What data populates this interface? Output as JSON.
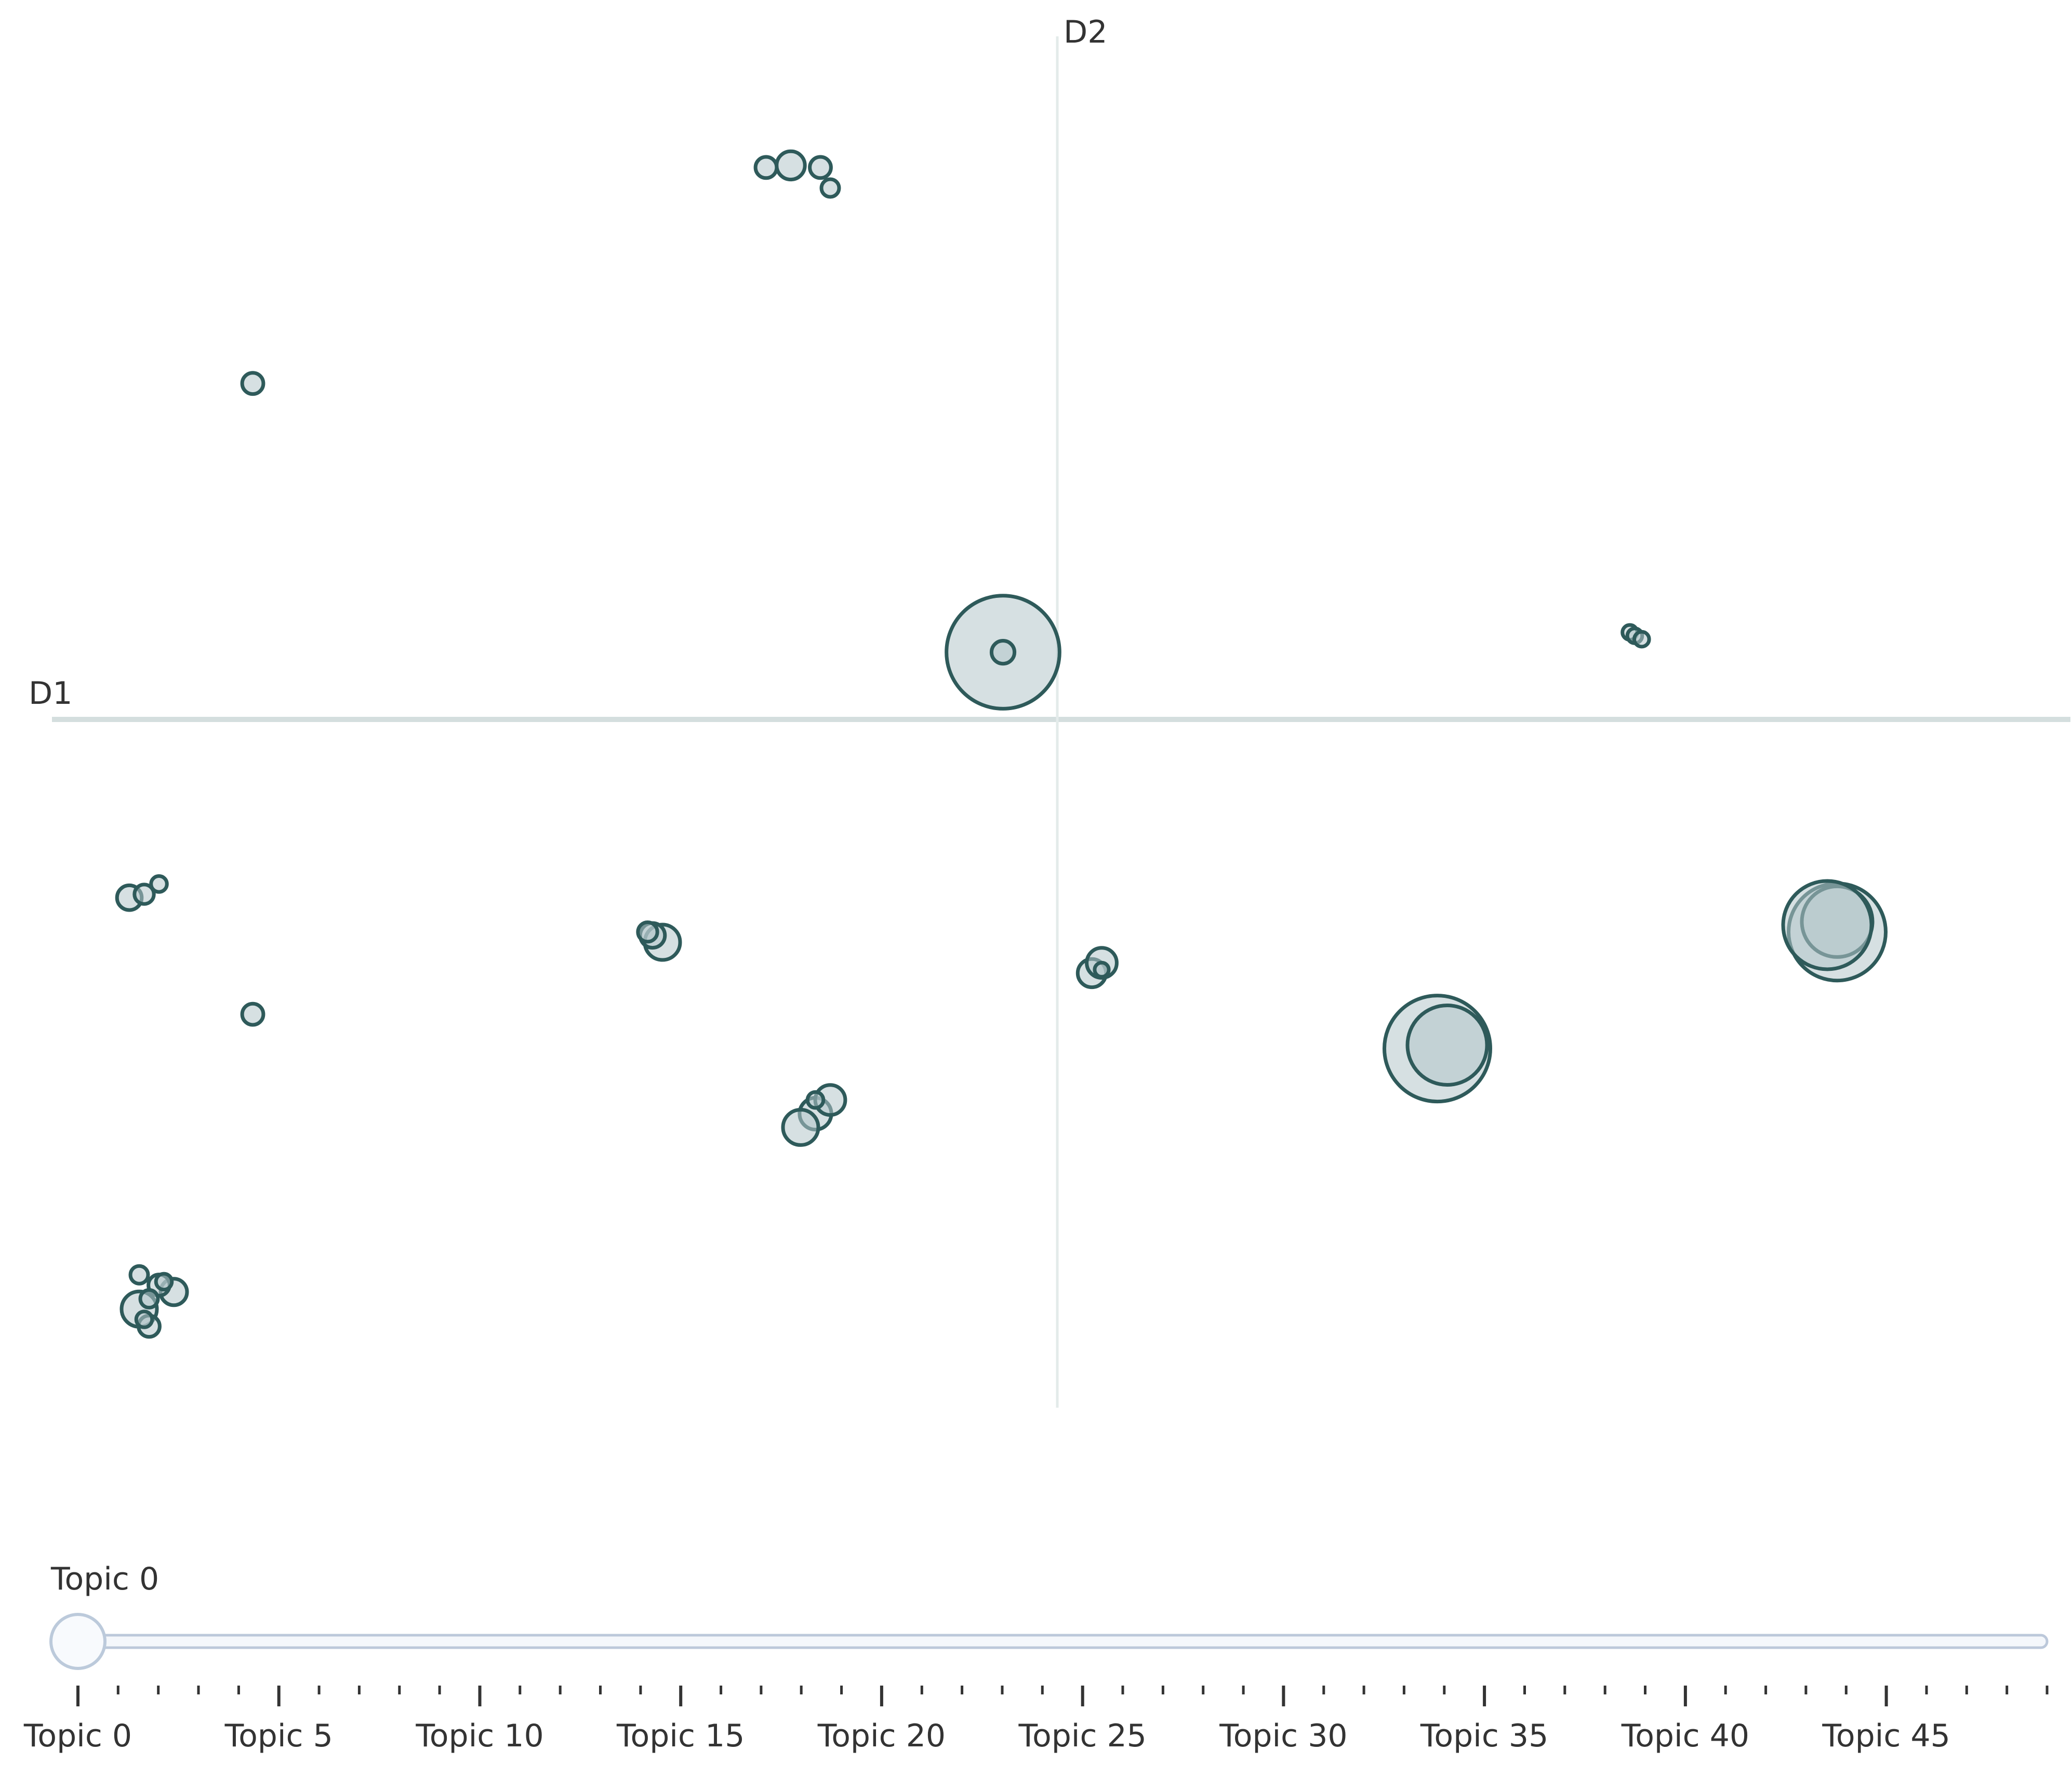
{
  "chart_data": {
    "type": "scatter",
    "xlabel": "D1",
    "ylabel": "D2",
    "xlim": [
      -10,
      10
    ],
    "ylim": [
      -10,
      10
    ],
    "grid": false,
    "marker_fill": "#b4c6cb",
    "marker_stroke": "#2e5a5a",
    "axis_color": "#d4dede",
    "points": [
      {
        "x": -0.55,
        "y": 0.98,
        "size": 3.2
      },
      {
        "x": -0.55,
        "y": 0.98,
        "size": 0.65
      },
      {
        "x": 3.85,
        "y": -4.8,
        "size": 3.0
      },
      {
        "x": 3.95,
        "y": -4.75,
        "size": 2.25
      },
      {
        "x": 7.9,
        "y": -3.1,
        "size": 2.75
      },
      {
        "x": 7.9,
        "y": -2.95,
        "size": 2.0
      },
      {
        "x": 7.8,
        "y": -3.0,
        "size": 2.5
      },
      {
        "x": -2.7,
        "y": 8.08,
        "size": 0.8
      },
      {
        "x": -2.95,
        "y": 8.05,
        "size": 0.6
      },
      {
        "x": -2.4,
        "y": 8.05,
        "size": 0.6
      },
      {
        "x": -2.3,
        "y": 7.75,
        "size": 0.5
      },
      {
        "x": -8.15,
        "y": 4.9,
        "size": 0.6
      },
      {
        "x": 5.8,
        "y": 1.27,
        "size": 0.42
      },
      {
        "x": 5.85,
        "y": 1.22,
        "size": 0.42
      },
      {
        "x": 5.92,
        "y": 1.17,
        "size": 0.42
      },
      {
        "x": -9.4,
        "y": -2.6,
        "size": 0.7
      },
      {
        "x": -9.25,
        "y": -2.55,
        "size": 0.55
      },
      {
        "x": -9.1,
        "y": -2.4,
        "size": 0.45
      },
      {
        "x": -8.15,
        "y": -4.3,
        "size": 0.6
      },
      {
        "x": -4.0,
        "y": -3.25,
        "size": 1.0
      },
      {
        "x": -4.1,
        "y": -3.15,
        "size": 0.7
      },
      {
        "x": -4.15,
        "y": -3.1,
        "size": 0.55
      },
      {
        "x": 0.35,
        "y": -3.7,
        "size": 0.8
      },
      {
        "x": 0.45,
        "y": -3.55,
        "size": 0.85
      },
      {
        "x": 0.45,
        "y": -3.65,
        "size": 0.4
      },
      {
        "x": -2.45,
        "y": -5.75,
        "size": 0.9
      },
      {
        "x": -2.3,
        "y": -5.55,
        "size": 0.85
      },
      {
        "x": -2.45,
        "y": -5.55,
        "size": 0.45
      },
      {
        "x": -2.6,
        "y": -5.95,
        "size": 1.0
      },
      {
        "x": -9.3,
        "y": -8.6,
        "size": 1.0
      },
      {
        "x": -8.95,
        "y": -8.35,
        "size": 0.75
      },
      {
        "x": -9.1,
        "y": -8.25,
        "size": 0.6
      },
      {
        "x": -9.3,
        "y": -8.1,
        "size": 0.5
      },
      {
        "x": -9.2,
        "y": -8.85,
        "size": 0.6
      },
      {
        "x": -9.2,
        "y": -8.45,
        "size": 0.5
      },
      {
        "x": -9.05,
        "y": -8.2,
        "size": 0.45
      },
      {
        "x": -9.25,
        "y": -8.75,
        "size": 0.45
      }
    ],
    "slider": {
      "current_label": "Topic 0",
      "value": 0,
      "min": 0,
      "max": 49,
      "minor_step": 1,
      "major_step": 5,
      "tick_labels": [
        "Topic 0",
        "Topic 5",
        "Topic 10",
        "Topic 15",
        "Topic 20",
        "Topic 25",
        "Topic 30",
        "Topic 35",
        "Topic 40",
        "Topic 45"
      ]
    }
  }
}
